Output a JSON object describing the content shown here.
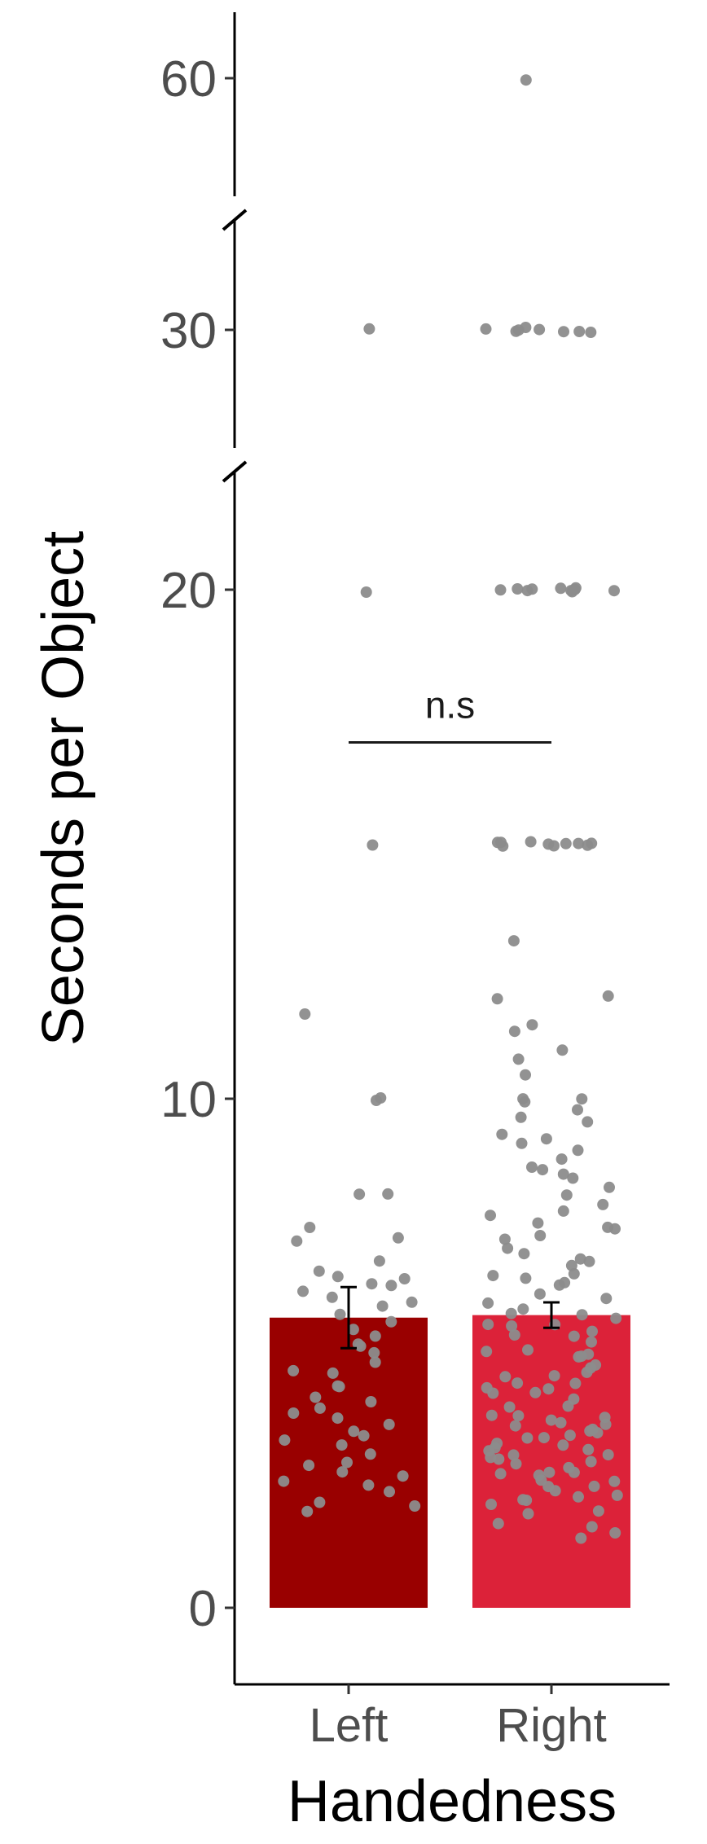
{
  "chart_data": {
    "type": "bar",
    "xlabel": "Handedness",
    "ylabel": "Seconds per Object",
    "categories": [
      "Left",
      "Right"
    ],
    "y_axis": {
      "broken": true,
      "segments": [
        {
          "range": [
            0,
            22
          ],
          "ticks": [
            "0",
            "10",
            "20"
          ]
        },
        {
          "range": [
            28,
            32
          ],
          "ticks": [
            "30"
          ]
        },
        {
          "range": [
            58,
            61
          ],
          "ticks": [
            "60"
          ]
        }
      ]
    },
    "grid": false,
    "legend": "none",
    "series": [
      {
        "values": [
          5.7,
          5.75
        ],
        "error": [
          0.6,
          0.25
        ],
        "colors": [
          "#990000",
          "#dc2239"
        ]
      }
    ],
    "annotation": {
      "text": "n.s",
      "between": [
        "Left",
        "Right"
      ],
      "y": 17
    },
    "points": {
      "color": "#8c8c8c",
      "Left": [
        30,
        20,
        15,
        11.7,
        10,
        10,
        8.1,
        8.1,
        7.5,
        7.3,
        7.2,
        6.8,
        6.6,
        6.5,
        6.5,
        6.3,
        6.2,
        6.1,
        6.0,
        5.9,
        5.8,
        5.6,
        5.5,
        5.3,
        5.1,
        5.0,
        4.8,
        4.6,
        4.4,
        4.3,
        4.1,
        4.0,
        3.9,
        3.7,
        3.6,
        3.5,
        3.4,
        3.3,
        3.2,
        3.0,
        2.9,
        2.8,
        2.6,
        2.5,
        2.4,
        2.3,
        2.1,
        2.0,
        1.9,
        6.4,
        5.2,
        4.7,
        3.8,
        2.7
      ],
      "Right": [
        60,
        30,
        30,
        30,
        30,
        30,
        30,
        30,
        30,
        20,
        20,
        20,
        20,
        20,
        20,
        20,
        20,
        20,
        20,
        20,
        15,
        15,
        15,
        15,
        15,
        15,
        15,
        15,
        15,
        15,
        13.1,
        12.0,
        12.0,
        11.5,
        11.3,
        11.0,
        10.8,
        10.5,
        10.0,
        10.0,
        9.8,
        9.6,
        9.5,
        9.3,
        9.2,
        9.0,
        8.8,
        8.6,
        8.5,
        8.3,
        8.1,
        7.9,
        7.7,
        7.6,
        7.4,
        7.3,
        7.1,
        7.0,
        6.9,
        6.8,
        6.6,
        6.5,
        6.4,
        6.3,
        6.1,
        6.0,
        5.9,
        5.8,
        5.6,
        5.5,
        5.4,
        5.2,
        5.1,
        5.0,
        4.9,
        4.8,
        4.6,
        4.5,
        4.4,
        4.3,
        4.2,
        4.0,
        3.9,
        3.8,
        3.7,
        3.6,
        3.5,
        3.4,
        3.3,
        3.2,
        3.1,
        3.0,
        2.9,
        2.8,
        2.7,
        2.6,
        2.5,
        2.4,
        2.3,
        2.2,
        2.1,
        2.0,
        1.9,
        1.8,
        1.7,
        1.6,
        1.5,
        1.4,
        5.7,
        5.3,
        4.7,
        4.1,
        3.6,
        3.1,
        2.6,
        2.2,
        3.3,
        3.0,
        2.8,
        3.5,
        4.2,
        4.9,
        5.6,
        6.2,
        6.7,
        7.2,
        7.8,
        8.4,
        9.1,
        3.2,
        2.9,
        3.4,
        2.7,
        3.8,
        4.4,
        5.0,
        5.8,
        2.4,
        3.0,
        3.6,
        4.3,
        2.1,
        2.5,
        3.1,
        3.7,
        4.6,
        5.4,
        6.5,
        7.5,
        8.7,
        9.9
      ]
    }
  }
}
